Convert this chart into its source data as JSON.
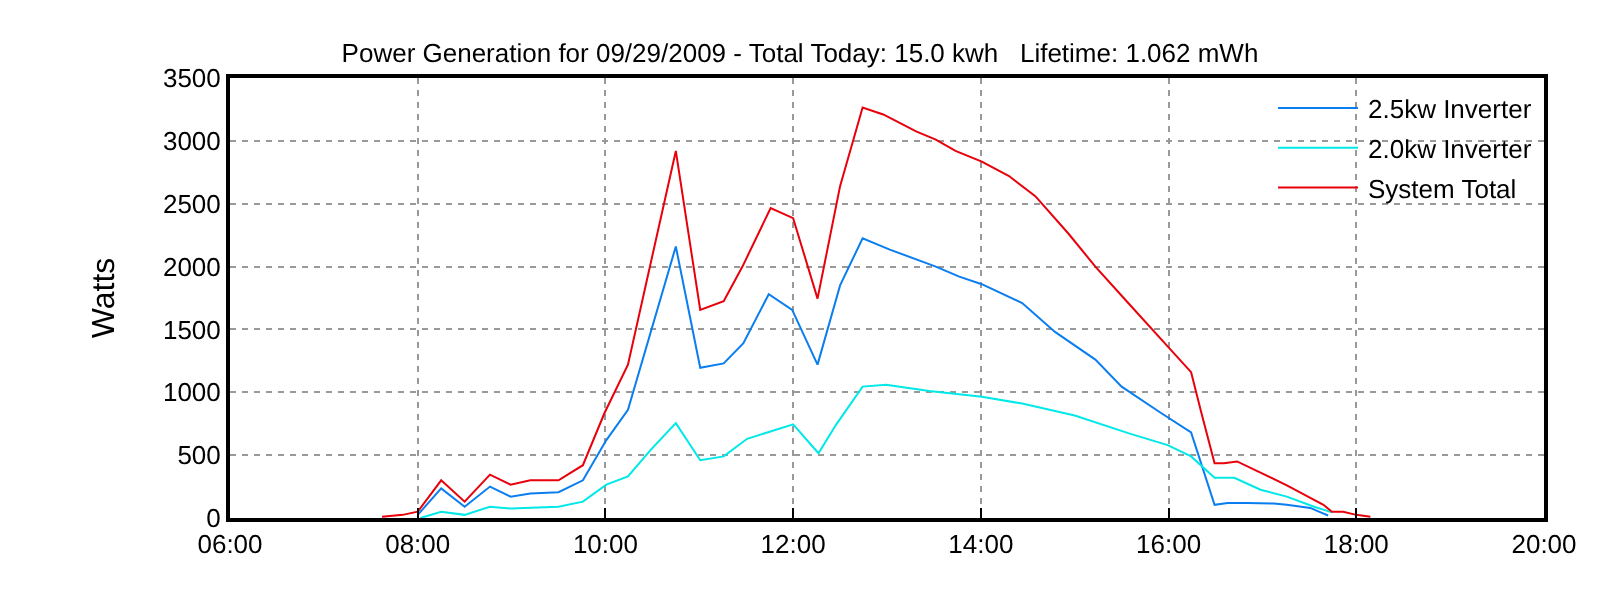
{
  "chart_data": {
    "type": "line",
    "title": "Power Generation for 09/29/2009 - Total Today: 15.0 kwh   Lifetime: 1.062 mWh",
    "ylabel": "Watts",
    "xlim": [
      6,
      20
    ],
    "xticks": [
      {
        "value": 6,
        "label": "06:00"
      },
      {
        "value": 8,
        "label": "08:00"
      },
      {
        "value": 10,
        "label": "10:00"
      },
      {
        "value": 12,
        "label": "12:00"
      },
      {
        "value": 14,
        "label": "14:00"
      },
      {
        "value": 16,
        "label": "16:00"
      },
      {
        "value": 18,
        "label": "18:00"
      },
      {
        "value": 20,
        "label": "20:00"
      }
    ],
    "ylim": [
      0,
      3500
    ],
    "yticks": [
      0,
      500,
      1000,
      1500,
      2000,
      2500,
      3000,
      3500
    ],
    "grid": true,
    "legend": "top right",
    "marker": "none",
    "line_style": "solid",
    "series": [
      {
        "name": "2.5kw Inverter",
        "color": "#0a7ef0",
        "x": [
          8.0,
          8.25,
          8.5,
          8.77,
          8.99,
          9.2,
          9.5,
          9.76,
          10.01,
          10.24,
          10.75,
          11.01,
          11.26,
          11.47,
          11.74,
          11.99,
          12.26,
          12.5,
          12.74,
          13.03,
          13.52,
          13.77,
          14.01,
          14.44,
          14.79,
          15.22,
          15.5,
          15.92,
          16.24,
          16.49,
          16.63,
          16.84,
          17.12,
          17.26,
          17.51,
          17.62,
          17.7
        ],
        "values": [
          25,
          235,
          90,
          250,
          170,
          195,
          205,
          300,
          620,
          860,
          2160,
          1195,
          1230,
          1390,
          1780,
          1655,
          1220,
          1850,
          2225,
          2135,
          2000,
          1920,
          1860,
          1710,
          1480,
          1260,
          1045,
          835,
          680,
          105,
          120,
          120,
          115,
          105,
          80,
          45,
          20
        ]
      },
      {
        "name": "2.0kw Inverter",
        "color": "#00e8e8",
        "x": [
          8.03,
          8.25,
          8.5,
          8.77,
          8.99,
          9.5,
          9.76,
          10.01,
          10.24,
          10.48,
          10.75,
          11.01,
          11.26,
          11.51,
          12.0,
          12.27,
          12.46,
          12.74,
          12.99,
          13.45,
          14.01,
          14.44,
          15.0,
          15.57,
          15.99,
          16.24,
          16.49,
          16.7,
          16.98,
          17.26,
          17.55,
          17.74
        ],
        "values": [
          0,
          50,
          25,
          90,
          75,
          90,
          130,
          265,
          330,
          540,
          755,
          460,
          490,
          630,
          745,
          515,
          745,
          1045,
          1060,
          1010,
          965,
          910,
          815,
          675,
          580,
          490,
          320,
          320,
          225,
          170,
          90,
          45
        ]
      },
      {
        "name": "System Total",
        "color": "#e8000b",
        "x": [
          7.62,
          7.84,
          8.0,
          8.25,
          8.5,
          8.77,
          8.99,
          9.2,
          9.5,
          9.76,
          9.99,
          10.24,
          10.75,
          11.01,
          11.26,
          11.46,
          11.76,
          12.0,
          12.26,
          12.5,
          12.74,
          12.96,
          13.31,
          13.52,
          13.73,
          14.01,
          14.3,
          14.58,
          14.93,
          15.22,
          15.57,
          15.99,
          16.24,
          16.35,
          16.49,
          16.59,
          16.73,
          17.26,
          17.65,
          17.74,
          17.86,
          18.0,
          18.15
        ],
        "values": [
          10,
          25,
          50,
          300,
          130,
          345,
          265,
          300,
          300,
          420,
          835,
          1220,
          2920,
          1655,
          1725,
          2000,
          2465,
          2385,
          1745,
          2640,
          3265,
          3210,
          3075,
          3010,
          2920,
          2835,
          2720,
          2560,
          2265,
          2000,
          1710,
          1365,
          1160,
          835,
          435,
          435,
          450,
          260,
          105,
          50,
          50,
          25,
          10
        ]
      }
    ]
  }
}
